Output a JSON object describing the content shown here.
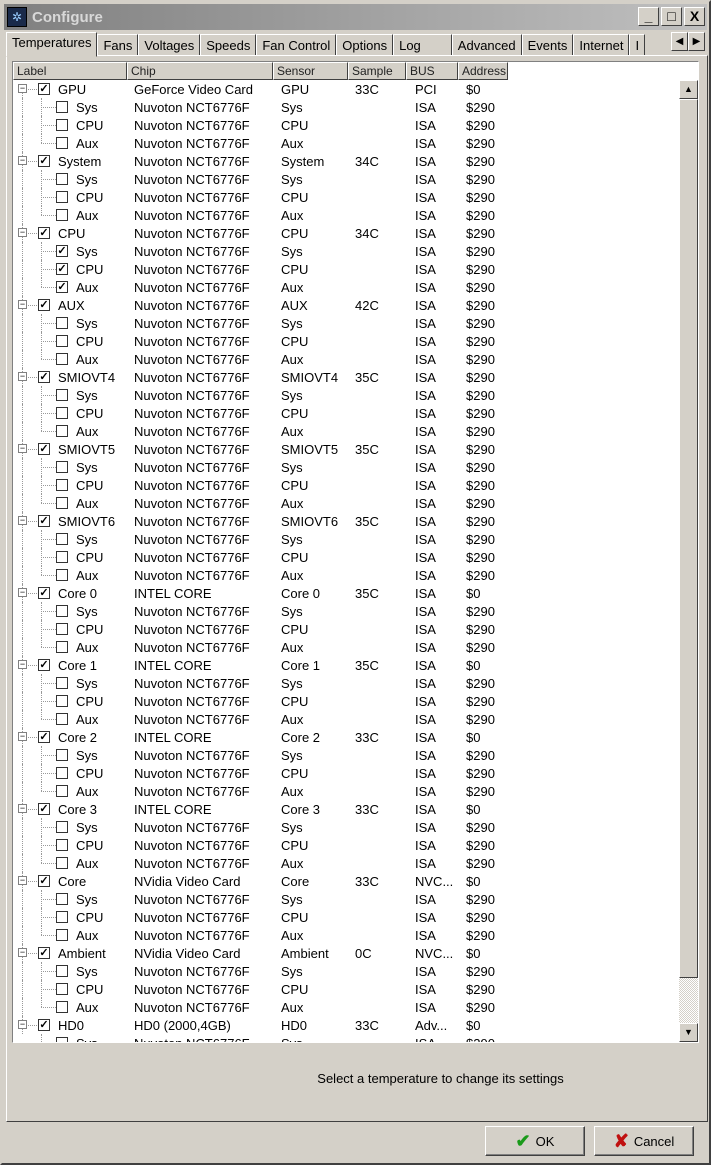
{
  "window": {
    "title": "Configure",
    "icon": "fan-icon",
    "controls": [
      "_",
      "□",
      "X"
    ]
  },
  "tabs": [
    "Temperatures",
    "Fans",
    "Voltages",
    "Speeds",
    "Fan Control",
    "Options",
    "Log",
    "Advanced",
    "Events",
    "Internet",
    "I"
  ],
  "active_tab": "Temperatures",
  "columns": [
    "Label",
    "Chip",
    "Sensor",
    "Sample",
    "BUS",
    "Address"
  ],
  "groups": [
    {
      "label": "GPU",
      "chip": "GeForce Video Card",
      "sensor": "GPU",
      "sample": "33C",
      "bus": "PCI",
      "address": "$0",
      "checked": true,
      "children_checked": false
    },
    {
      "label": "System",
      "chip": "Nuvoton NCT6776F",
      "sensor": "System",
      "sample": "34C",
      "bus": "ISA",
      "address": "$290",
      "checked": true,
      "children_checked": false
    },
    {
      "label": "CPU",
      "chip": "Nuvoton NCT6776F",
      "sensor": "CPU",
      "sample": "34C",
      "bus": "ISA",
      "address": "$290",
      "checked": true,
      "children_checked": true
    },
    {
      "label": "AUX",
      "chip": "Nuvoton NCT6776F",
      "sensor": "AUX",
      "sample": "42C",
      "bus": "ISA",
      "address": "$290",
      "checked": true,
      "children_checked": false
    },
    {
      "label": "SMIOVT4",
      "chip": "Nuvoton NCT6776F",
      "sensor": "SMIOVT4",
      "sample": "35C",
      "bus": "ISA",
      "address": "$290",
      "checked": true,
      "children_checked": false
    },
    {
      "label": "SMIOVT5",
      "chip": "Nuvoton NCT6776F",
      "sensor": "SMIOVT5",
      "sample": "35C",
      "bus": "ISA",
      "address": "$290",
      "checked": true,
      "children_checked": false
    },
    {
      "label": "SMIOVT6",
      "chip": "Nuvoton NCT6776F",
      "sensor": "SMIOVT6",
      "sample": "35C",
      "bus": "ISA",
      "address": "$290",
      "checked": true,
      "children_checked": false
    },
    {
      "label": "Core 0",
      "chip": "INTEL CORE",
      "sensor": "Core 0",
      "sample": "35C",
      "bus": "ISA",
      "address": "$0",
      "checked": true,
      "children_checked": false
    },
    {
      "label": "Core 1",
      "chip": "INTEL CORE",
      "sensor": "Core 1",
      "sample": "35C",
      "bus": "ISA",
      "address": "$0",
      "checked": true,
      "children_checked": false
    },
    {
      "label": "Core 2",
      "chip": "INTEL CORE",
      "sensor": "Core 2",
      "sample": "33C",
      "bus": "ISA",
      "address": "$0",
      "checked": true,
      "children_checked": false
    },
    {
      "label": "Core 3",
      "chip": "INTEL CORE",
      "sensor": "Core 3",
      "sample": "33C",
      "bus": "ISA",
      "address": "$0",
      "checked": true,
      "children_checked": false
    },
    {
      "label": "Core",
      "chip": "NVidia Video Card",
      "sensor": "Core",
      "sample": "33C",
      "bus": "NVC...",
      "address": "$0",
      "checked": true,
      "children_checked": false
    },
    {
      "label": "Ambient",
      "chip": "NVidia Video Card",
      "sensor": "Ambient",
      "sample": "0C",
      "bus": "NVC...",
      "address": "$0",
      "checked": true,
      "children_checked": false
    },
    {
      "label": "HD0",
      "chip": "HD0 (2000,4GB)",
      "sensor": "HD0",
      "sample": "33C",
      "bus": "Adv...",
      "address": "$0",
      "checked": true,
      "children_checked": false
    }
  ],
  "child": {
    "labels": [
      "Sys",
      "CPU",
      "Aux"
    ],
    "chip": "Nuvoton NCT6776F",
    "bus": "ISA",
    "address": "$290"
  },
  "status_text": "Select a temperature to change its settings",
  "buttons": {
    "ok": "OK",
    "cancel": "Cancel"
  },
  "colors": {
    "ok_check": "#1a9a1a",
    "cancel_x": "#c01010"
  }
}
